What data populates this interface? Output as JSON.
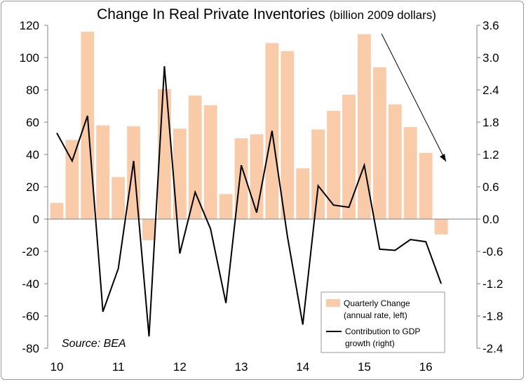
{
  "chart_data": {
    "type": "bar",
    "title": "Change In Real Private Inventories",
    "subtitle": "(billion 2009 dollars)",
    "source": "Source: BEA",
    "x_tick_labels": [
      "10",
      "11",
      "12",
      "13",
      "14",
      "15",
      "16"
    ],
    "y_left": {
      "lim": [
        -80,
        120
      ],
      "ticks": [
        -80,
        -60,
        -40,
        -20,
        0,
        20,
        40,
        60,
        80,
        100,
        120
      ]
    },
    "y_right": {
      "lim": [
        -2.4,
        3.6
      ],
      "tick_labels": [
        "-2.4",
        "-1.8",
        "-1.2",
        "-0.6",
        "0.0",
        "0.6",
        "1.2",
        "1.8",
        "2.4",
        "3.0",
        "3.6"
      ],
      "ticks": [
        -2.4,
        -1.8,
        -1.2,
        -0.6,
        0.0,
        0.6,
        1.2,
        1.8,
        2.4,
        3.0,
        3.6
      ]
    },
    "quarters_per_year": 4,
    "start_year_label": "10",
    "series": [
      {
        "name": "Quarterly Change (annual rate, left)",
        "legend_lines": [
          "Quarterly Change",
          "(annual rate, left)"
        ],
        "type": "bar",
        "axis": "left",
        "color": "#f9cba8",
        "values": [
          10,
          49,
          116,
          58,
          26,
          57.5,
          -13,
          80.5,
          56,
          76.5,
          70.5,
          15.5,
          50,
          52.5,
          109,
          104,
          31.5,
          55.5,
          67,
          77,
          114.5,
          94,
          71,
          57,
          41,
          -9.5
        ]
      },
      {
        "name": "Contribution to GDP growth (right)",
        "legend_lines": [
          "Contribution to GDP",
          "growth (right)"
        ],
        "type": "line",
        "axis": "right",
        "color": "#000000",
        "values": [
          1.6,
          1.08,
          1.92,
          -1.72,
          -0.92,
          1.08,
          -2.18,
          2.84,
          -0.64,
          0.5,
          -0.18,
          -1.56,
          1.0,
          0.12,
          1.64,
          -0.32,
          -1.96,
          0.62,
          0.26,
          0.22,
          1.0,
          -0.56,
          -0.58,
          -0.38,
          -0.42,
          -1.2
        ]
      }
    ],
    "annotation": "trend arrow pointing down",
    "grid": false,
    "legend_position": "bottom-right"
  }
}
